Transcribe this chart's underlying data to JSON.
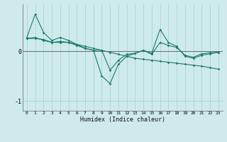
{
  "xlabel": "Humidex (Indice chaleur)",
  "bg_color": "#ceeaea",
  "line_color": "#1a7a6e",
  "grid_color": "#aed4d4",
  "x": [
    0,
    1,
    2,
    3,
    4,
    5,
    6,
    7,
    8,
    9,
    10,
    11,
    12,
    13,
    14,
    15,
    16,
    17,
    18,
    19,
    20,
    21,
    22,
    23
  ],
  "line1": [
    0.28,
    0.75,
    0.38,
    0.22,
    0.28,
    0.22,
    0.14,
    0.06,
    0.02,
    0.02,
    -0.38,
    -0.18,
    -0.06,
    -0.04,
    0.02,
    -0.06,
    0.18,
    0.12,
    0.08,
    -0.08,
    -0.12,
    -0.05,
    -0.03,
    -0.02
  ],
  "line2": [
    0.26,
    0.26,
    0.24,
    0.18,
    0.18,
    0.18,
    0.14,
    0.1,
    0.06,
    0.02,
    -0.02,
    -0.06,
    -0.1,
    -0.14,
    -0.16,
    -0.18,
    -0.2,
    -0.22,
    -0.24,
    -0.26,
    -0.28,
    -0.3,
    -0.33,
    -0.36
  ],
  "line3": [
    0.26,
    0.28,
    0.22,
    0.18,
    0.2,
    0.18,
    0.12,
    0.06,
    0.02,
    -0.5,
    -0.65,
    -0.26,
    -0.1,
    -0.04,
    0.02,
    -0.04,
    0.44,
    0.18,
    0.1,
    -0.1,
    -0.14,
    -0.08,
    -0.05,
    -0.02
  ],
  "yticks": [
    0,
    -1
  ],
  "ylim": [
    -1.2,
    0.95
  ],
  "xlim": [
    -0.5,
    23.5
  ]
}
